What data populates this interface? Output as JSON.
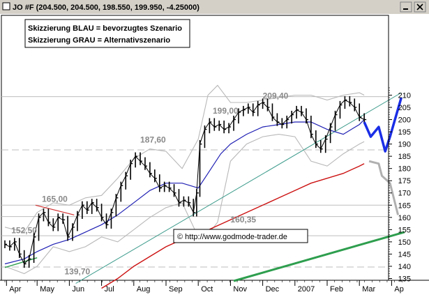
{
  "window": {
    "title": "JO #F (204.500, 204.500, 198.550, 199.950, -4.25000)"
  },
  "legend": {
    "line1": "Skizzierung BLAU = bevorzugtes Szenario",
    "line2": "Skizzierung GRAU = Alternativszenario"
  },
  "credit": "© http://www.godmode-trader.de",
  "colors": {
    "price": "#000000",
    "ma_short": "#1f1fb4",
    "ma_long": "#cc1111",
    "bollinger": "#b8b8b8",
    "trend_teal": "#3a9a8a",
    "trend_green": "#2e9e4e",
    "trend_red": "#d23030",
    "scenario_blue": "#1a2ee6",
    "scenario_gray": "#b0b0b0",
    "horizontal_levels": "#bdbdbd"
  },
  "chart_data": {
    "type": "line",
    "title": "JO #F (204.500, 204.500, 198.550, 199.950, -4.25000)",
    "xlabel": "",
    "ylabel": "",
    "ylim": [
      134,
      214
    ],
    "xlim": [
      0,
      12.5
    ],
    "x_unit": "months since start of April 2006",
    "grid": false,
    "y_ticks": [
      135,
      140,
      145,
      150,
      155,
      160,
      165,
      170,
      175,
      180,
      185,
      190,
      195,
      200,
      205,
      210
    ],
    "x_ticks": [
      {
        "label": "Apr",
        "x": 0.05
      },
      {
        "label": "May",
        "x": 1.0
      },
      {
        "label": "Jun",
        "x": 2.0
      },
      {
        "label": "Jul",
        "x": 3.0
      },
      {
        "label": "Aug",
        "x": 4.0
      },
      {
        "label": "Sep",
        "x": 5.0
      },
      {
        "label": "Oct",
        "x": 6.0
      },
      {
        "label": "Nov",
        "x": 7.0
      },
      {
        "label": "Dec",
        "x": 8.0
      },
      {
        "label": "2007",
        "x": 9.0
      },
      {
        "label": "Feb",
        "x": 10.0
      },
      {
        "label": "Mar",
        "x": 11.0
      },
      {
        "label": "Ap",
        "x": 12.0
      }
    ],
    "annotations": [
      {
        "text": "209,40",
        "x": 8.0,
        "y": 208.6
      },
      {
        "text": "199,00",
        "x": 6.45,
        "y": 202.4
      },
      {
        "text": "187,60",
        "x": 4.2,
        "y": 190.6
      },
      {
        "text": "165,00",
        "x": 1.15,
        "y": 166.3
      },
      {
        "text": "152,50",
        "x": 0.2,
        "y": 153.6
      },
      {
        "text": "160,35",
        "x": 7.0,
        "y": 158.0
      },
      {
        "text": "139,70",
        "x": 1.85,
        "y": 136.7
      }
    ],
    "horizontal_levels": [
      209.4,
      187.6,
      165.0,
      160.35,
      152.5,
      139.7
    ],
    "series": [
      {
        "key": "price",
        "style": "ohlc",
        "x": [
          0.0,
          0.15,
          0.3,
          0.45,
          0.6,
          0.75,
          0.9,
          1.05,
          1.2,
          1.35,
          1.5,
          1.65,
          1.8,
          1.95,
          2.1,
          2.25,
          2.4,
          2.55,
          2.7,
          2.85,
          3.0,
          3.15,
          3.3,
          3.45,
          3.6,
          3.75,
          3.9,
          4.05,
          4.2,
          4.35,
          4.5,
          4.65,
          4.8,
          4.95,
          5.1,
          5.25,
          5.4,
          5.55,
          5.7,
          5.85,
          5.95,
          6.05,
          6.2,
          6.35,
          6.5,
          6.65,
          6.8,
          6.95,
          7.1,
          7.25,
          7.4,
          7.55,
          7.7,
          7.85,
          8.0,
          8.15,
          8.3,
          8.45,
          8.6,
          8.75,
          8.9,
          9.05,
          9.2,
          9.35,
          9.5,
          9.65,
          9.8,
          9.95,
          10.1,
          10.25,
          10.4,
          10.55,
          10.7,
          10.85,
          11.0,
          11.15
        ],
        "values": [
          149,
          148,
          150,
          145,
          141,
          143,
          152,
          160,
          162,
          158,
          156,
          160,
          159,
          152,
          156,
          161,
          165,
          163,
          166,
          164,
          160,
          157,
          162,
          168,
          173,
          177,
          182,
          185,
          183,
          181,
          178,
          176,
          172,
          173,
          172,
          170,
          166,
          167,
          166,
          162,
          170,
          190,
          196,
          199,
          197,
          198,
          196,
          197,
          200,
          203,
          204,
          205,
          203,
          206,
          207,
          205,
          201,
          199,
          198,
          200,
          202,
          204,
          203,
          200,
          194,
          190,
          188,
          192,
          197,
          202,
          206,
          208,
          207,
          205,
          201,
          200
        ]
      },
      {
        "key": "ma_short",
        "name": "",
        "x": [
          0.0,
          0.6,
          1.0,
          1.5,
          2.0,
          2.5,
          3.0,
          3.5,
          4.0,
          4.5,
          5.0,
          5.5,
          6.0,
          6.3,
          6.7,
          7.0,
          7.5,
          8.0,
          8.5,
          9.0,
          9.5,
          10.0,
          10.5,
          11.0,
          11.15
        ],
        "values": [
          141,
          143,
          146,
          149,
          151,
          154,
          157,
          161,
          166,
          171,
          174,
          174,
          172,
          178,
          186,
          190,
          194,
          197,
          198,
          199,
          199,
          196,
          194,
          198,
          200
        ]
      },
      {
        "key": "ma_long",
        "name": "",
        "x": [
          3.0,
          3.5,
          4.0,
          4.5,
          5.0,
          5.5,
          6.0,
          6.5,
          7.0,
          7.5,
          8.0,
          8.5,
          9.0,
          9.5,
          10.0,
          10.5,
          11.0,
          11.15
        ],
        "values": [
          131,
          135,
          140,
          144,
          148,
          151,
          153,
          156,
          159,
          162,
          165,
          168,
          171,
          174,
          176,
          178,
          181,
          182
        ]
      },
      {
        "key": "boll_upper",
        "name": "",
        "x": [
          0.0,
          0.6,
          1.0,
          1.5,
          2.0,
          2.5,
          3.0,
          3.5,
          4.0,
          4.5,
          5.0,
          5.5,
          6.0,
          6.3,
          6.6,
          7.0,
          7.5,
          8.0,
          8.5,
          9.0,
          9.5,
          10.0,
          10.5,
          11.0,
          11.15
        ],
        "values": [
          156,
          154,
          162,
          166,
          165,
          168,
          169,
          176,
          184,
          188,
          187,
          180,
          192,
          210,
          214,
          207,
          207,
          208,
          209,
          210,
          210,
          208,
          210,
          211,
          210
        ]
      },
      {
        "key": "boll_lower",
        "name": "",
        "x": [
          0.0,
          0.6,
          1.0,
          1.5,
          2.0,
          2.5,
          3.0,
          3.5,
          4.0,
          4.5,
          5.0,
          5.5,
          6.0,
          6.3,
          6.6,
          7.0,
          7.5,
          8.0,
          8.5,
          9.0,
          9.5,
          10.0,
          10.5,
          11.0,
          11.15
        ],
        "values": [
          140,
          137,
          140,
          148,
          146,
          148,
          152,
          150,
          155,
          160,
          164,
          166,
          152,
          153,
          158,
          183,
          190,
          193,
          194,
          193,
          183,
          181,
          186,
          190,
          191
        ]
      },
      {
        "key": "trend_teal",
        "name": "",
        "x": [
          2.2,
          12.3
        ],
        "values": [
          133,
          211
        ]
      },
      {
        "key": "trend_green",
        "name": "",
        "x": [
          7.1,
          12.4
        ],
        "values": [
          134,
          154
        ]
      },
      {
        "key": "trend_green_short",
        "name": "",
        "x": [
          0.0,
          1.0
        ],
        "values": [
          139.5,
          143.5
        ]
      },
      {
        "key": "trend_red",
        "name": "",
        "x": [
          0.95,
          2.15
        ],
        "values": [
          165,
          161
        ]
      },
      {
        "key": "scenario_blue",
        "name": "",
        "x": [
          11.15,
          11.35,
          11.6,
          11.8,
          11.95,
          12.3
        ],
        "values": [
          199,
          193,
          197,
          187,
          193,
          209
        ]
      },
      {
        "key": "scenario_gray",
        "name": "",
        "x": [
          11.3,
          11.6,
          11.7,
          11.95,
          12.2
        ],
        "values": [
          183,
          182,
          177,
          174,
          161
        ]
      }
    ]
  }
}
